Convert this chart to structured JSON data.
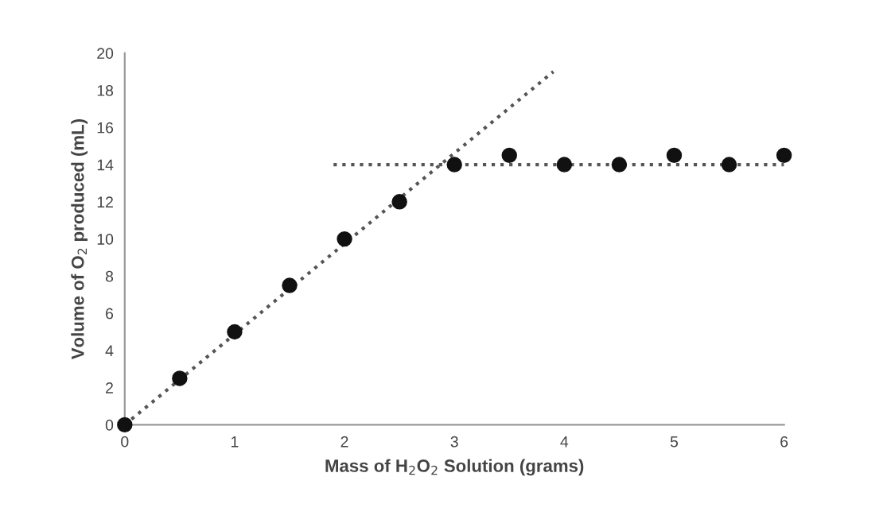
{
  "chart_data": {
    "type": "scatter",
    "xlabel": "Mass of H$_{2}$O$_{2}$ Solution (grams)",
    "ylabel": "Volume of O$_{2}$ produced (mL)",
    "xlim": [
      0,
      6
    ],
    "ylim": [
      0,
      20
    ],
    "xticks": [
      0,
      1,
      2,
      3,
      4,
      5,
      6
    ],
    "yticks": [
      0,
      2,
      4,
      6,
      8,
      10,
      12,
      14,
      16,
      18,
      20
    ],
    "grid": false,
    "marker": "circle",
    "series": [
      {
        "color": "#111111",
        "x": [
          0,
          0.5,
          1,
          1.5,
          2,
          2.5,
          3,
          3.5,
          4,
          4.5,
          5,
          5.5,
          6
        ],
        "values": [
          0,
          2.5,
          5,
          7.5,
          10,
          12,
          14,
          14.5,
          14,
          14,
          14.5,
          14,
          14.5
        ]
      },
      {
        "type": "line",
        "color": "#555555",
        "line_style": "dotted",
        "marker": "none",
        "x": [
          0,
          3.9
        ],
        "values": [
          0,
          19
        ]
      },
      {
        "type": "line",
        "color": "#555555",
        "line_style": "dotted",
        "marker": "none",
        "x": [
          1.9,
          6
        ],
        "values": [
          14,
          14
        ]
      }
    ]
  }
}
